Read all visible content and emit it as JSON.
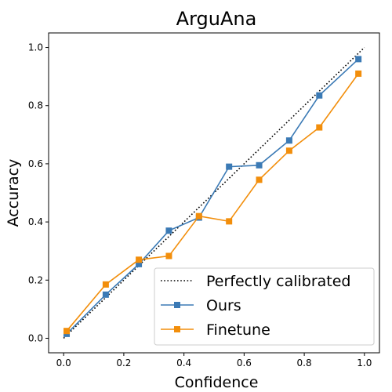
{
  "chart_data": {
    "type": "line",
    "title": "ArguAna",
    "xlabel": "Confidence",
    "ylabel": "Accuracy",
    "xlim": [
      -0.05,
      1.05
    ],
    "ylim": [
      -0.05,
      1.05
    ],
    "xticks": [
      "0.0",
      "0.2",
      "0.4",
      "0.6",
      "0.8",
      "1.0"
    ],
    "yticks": [
      "0.0",
      "0.2",
      "0.4",
      "0.6",
      "0.8",
      "1.0"
    ],
    "grid": false,
    "legend_position": "lower-right",
    "reference": {
      "name": "Perfectly calibrated",
      "style": "dotted",
      "color": "#000000",
      "x": [
        0,
        1
      ],
      "y": [
        0,
        1
      ]
    },
    "series": [
      {
        "name": "Ours",
        "color": "#3b7ab5",
        "marker": "square",
        "x": [
          0.01,
          0.14,
          0.25,
          0.35,
          0.45,
          0.55,
          0.65,
          0.75,
          0.85,
          0.98
        ],
        "y": [
          0.015,
          0.15,
          0.255,
          0.37,
          0.415,
          0.59,
          0.595,
          0.68,
          0.835,
          0.96
        ]
      },
      {
        "name": "Finetune",
        "color": "#f28e0b",
        "marker": "square",
        "x": [
          0.01,
          0.14,
          0.25,
          0.35,
          0.45,
          0.55,
          0.65,
          0.75,
          0.85,
          0.98
        ],
        "y": [
          0.025,
          0.185,
          0.27,
          0.283,
          0.42,
          0.402,
          0.545,
          0.645,
          0.725,
          0.91
        ]
      }
    ]
  }
}
